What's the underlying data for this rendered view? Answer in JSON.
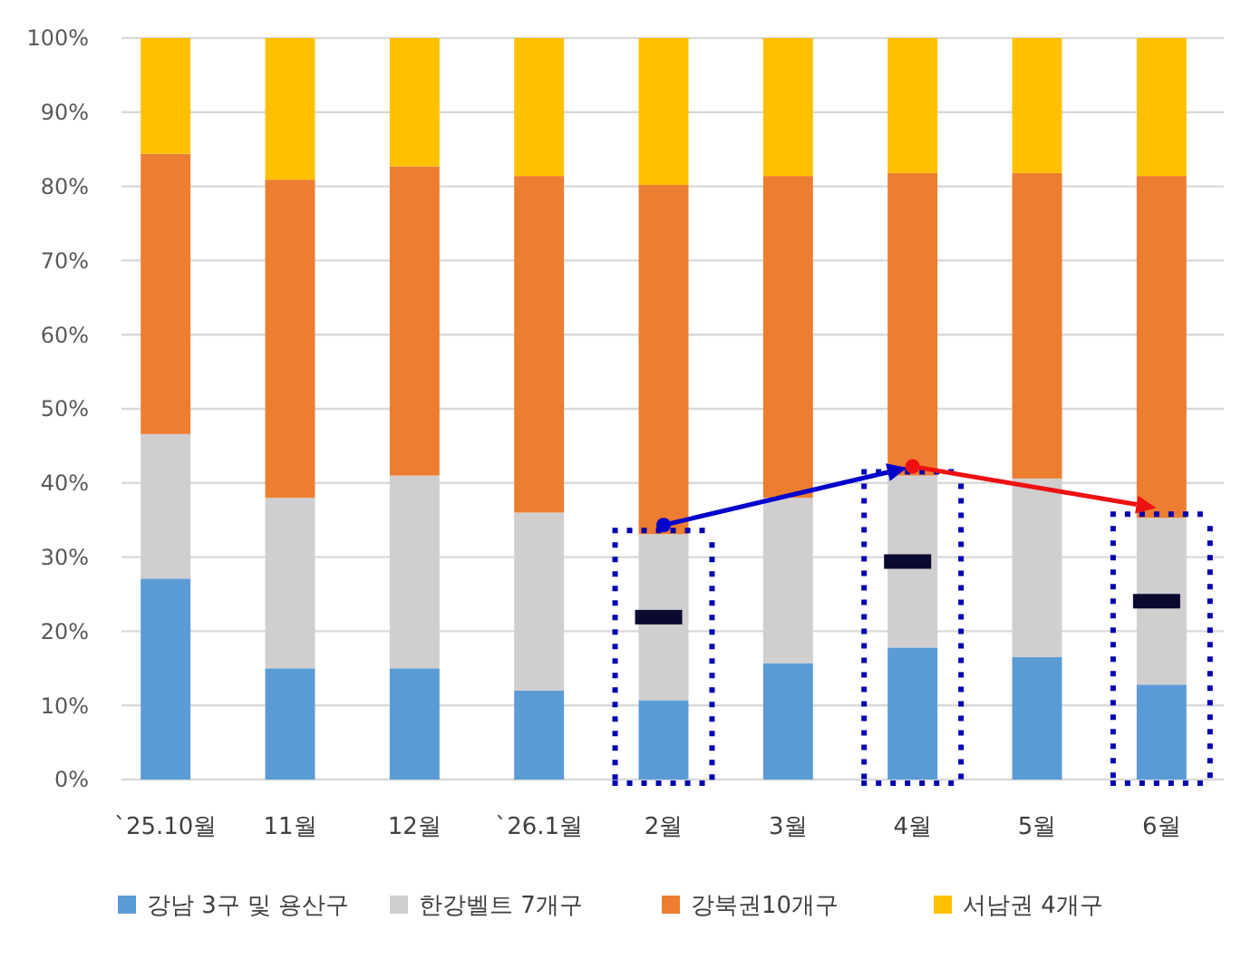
{
  "chart_data": {
    "type": "bar",
    "stacked": true,
    "categories": [
      "`25.10월",
      "11월",
      "12월",
      "`26.1월",
      "2월",
      "3월",
      "4월",
      "5월",
      "6월"
    ],
    "series": [
      {
        "name": "강남 3구 및 용산구",
        "color": "#5b9bd5",
        "values": [
          27.1,
          15.0,
          15.0,
          12.0,
          10.7,
          15.7,
          17.8,
          16.5,
          12.8
        ]
      },
      {
        "name": "한강벨트 7개구",
        "color": "#d0cece",
        "values": [
          19.5,
          23.0,
          26.0,
          24.0,
          22.4,
          22.3,
          23.2,
          24.1,
          22.5
        ]
      },
      {
        "name": "강북권10개구",
        "color": "#ed7d31",
        "values": [
          37.8,
          42.9,
          41.7,
          45.4,
          47.1,
          43.4,
          40.8,
          41.2,
          46.1
        ]
      },
      {
        "name": "서남권 4개구",
        "color": "#ffc000",
        "values": [
          15.6,
          19.1,
          17.3,
          18.6,
          19.8,
          18.6,
          18.2,
          18.2,
          18.6
        ]
      }
    ],
    "ylim": [
      0,
      100
    ],
    "yticks": [
      {
        "value": 0,
        "label": "0%"
      },
      {
        "value": 10,
        "label": "10%"
      },
      {
        "value": 20,
        "label": "20%"
      },
      {
        "value": 30,
        "label": "30%"
      },
      {
        "value": 40,
        "label": "40%"
      },
      {
        "value": 50,
        "label": "50%"
      },
      {
        "value": 60,
        "label": "60%"
      },
      {
        "value": 70,
        "label": "70%"
      },
      {
        "value": 80,
        "label": "80%"
      },
      {
        "value": 90,
        "label": "90%"
      },
      {
        "value": 100,
        "label": "100%"
      }
    ],
    "grid": "y",
    "legend": "bottom"
  }
}
